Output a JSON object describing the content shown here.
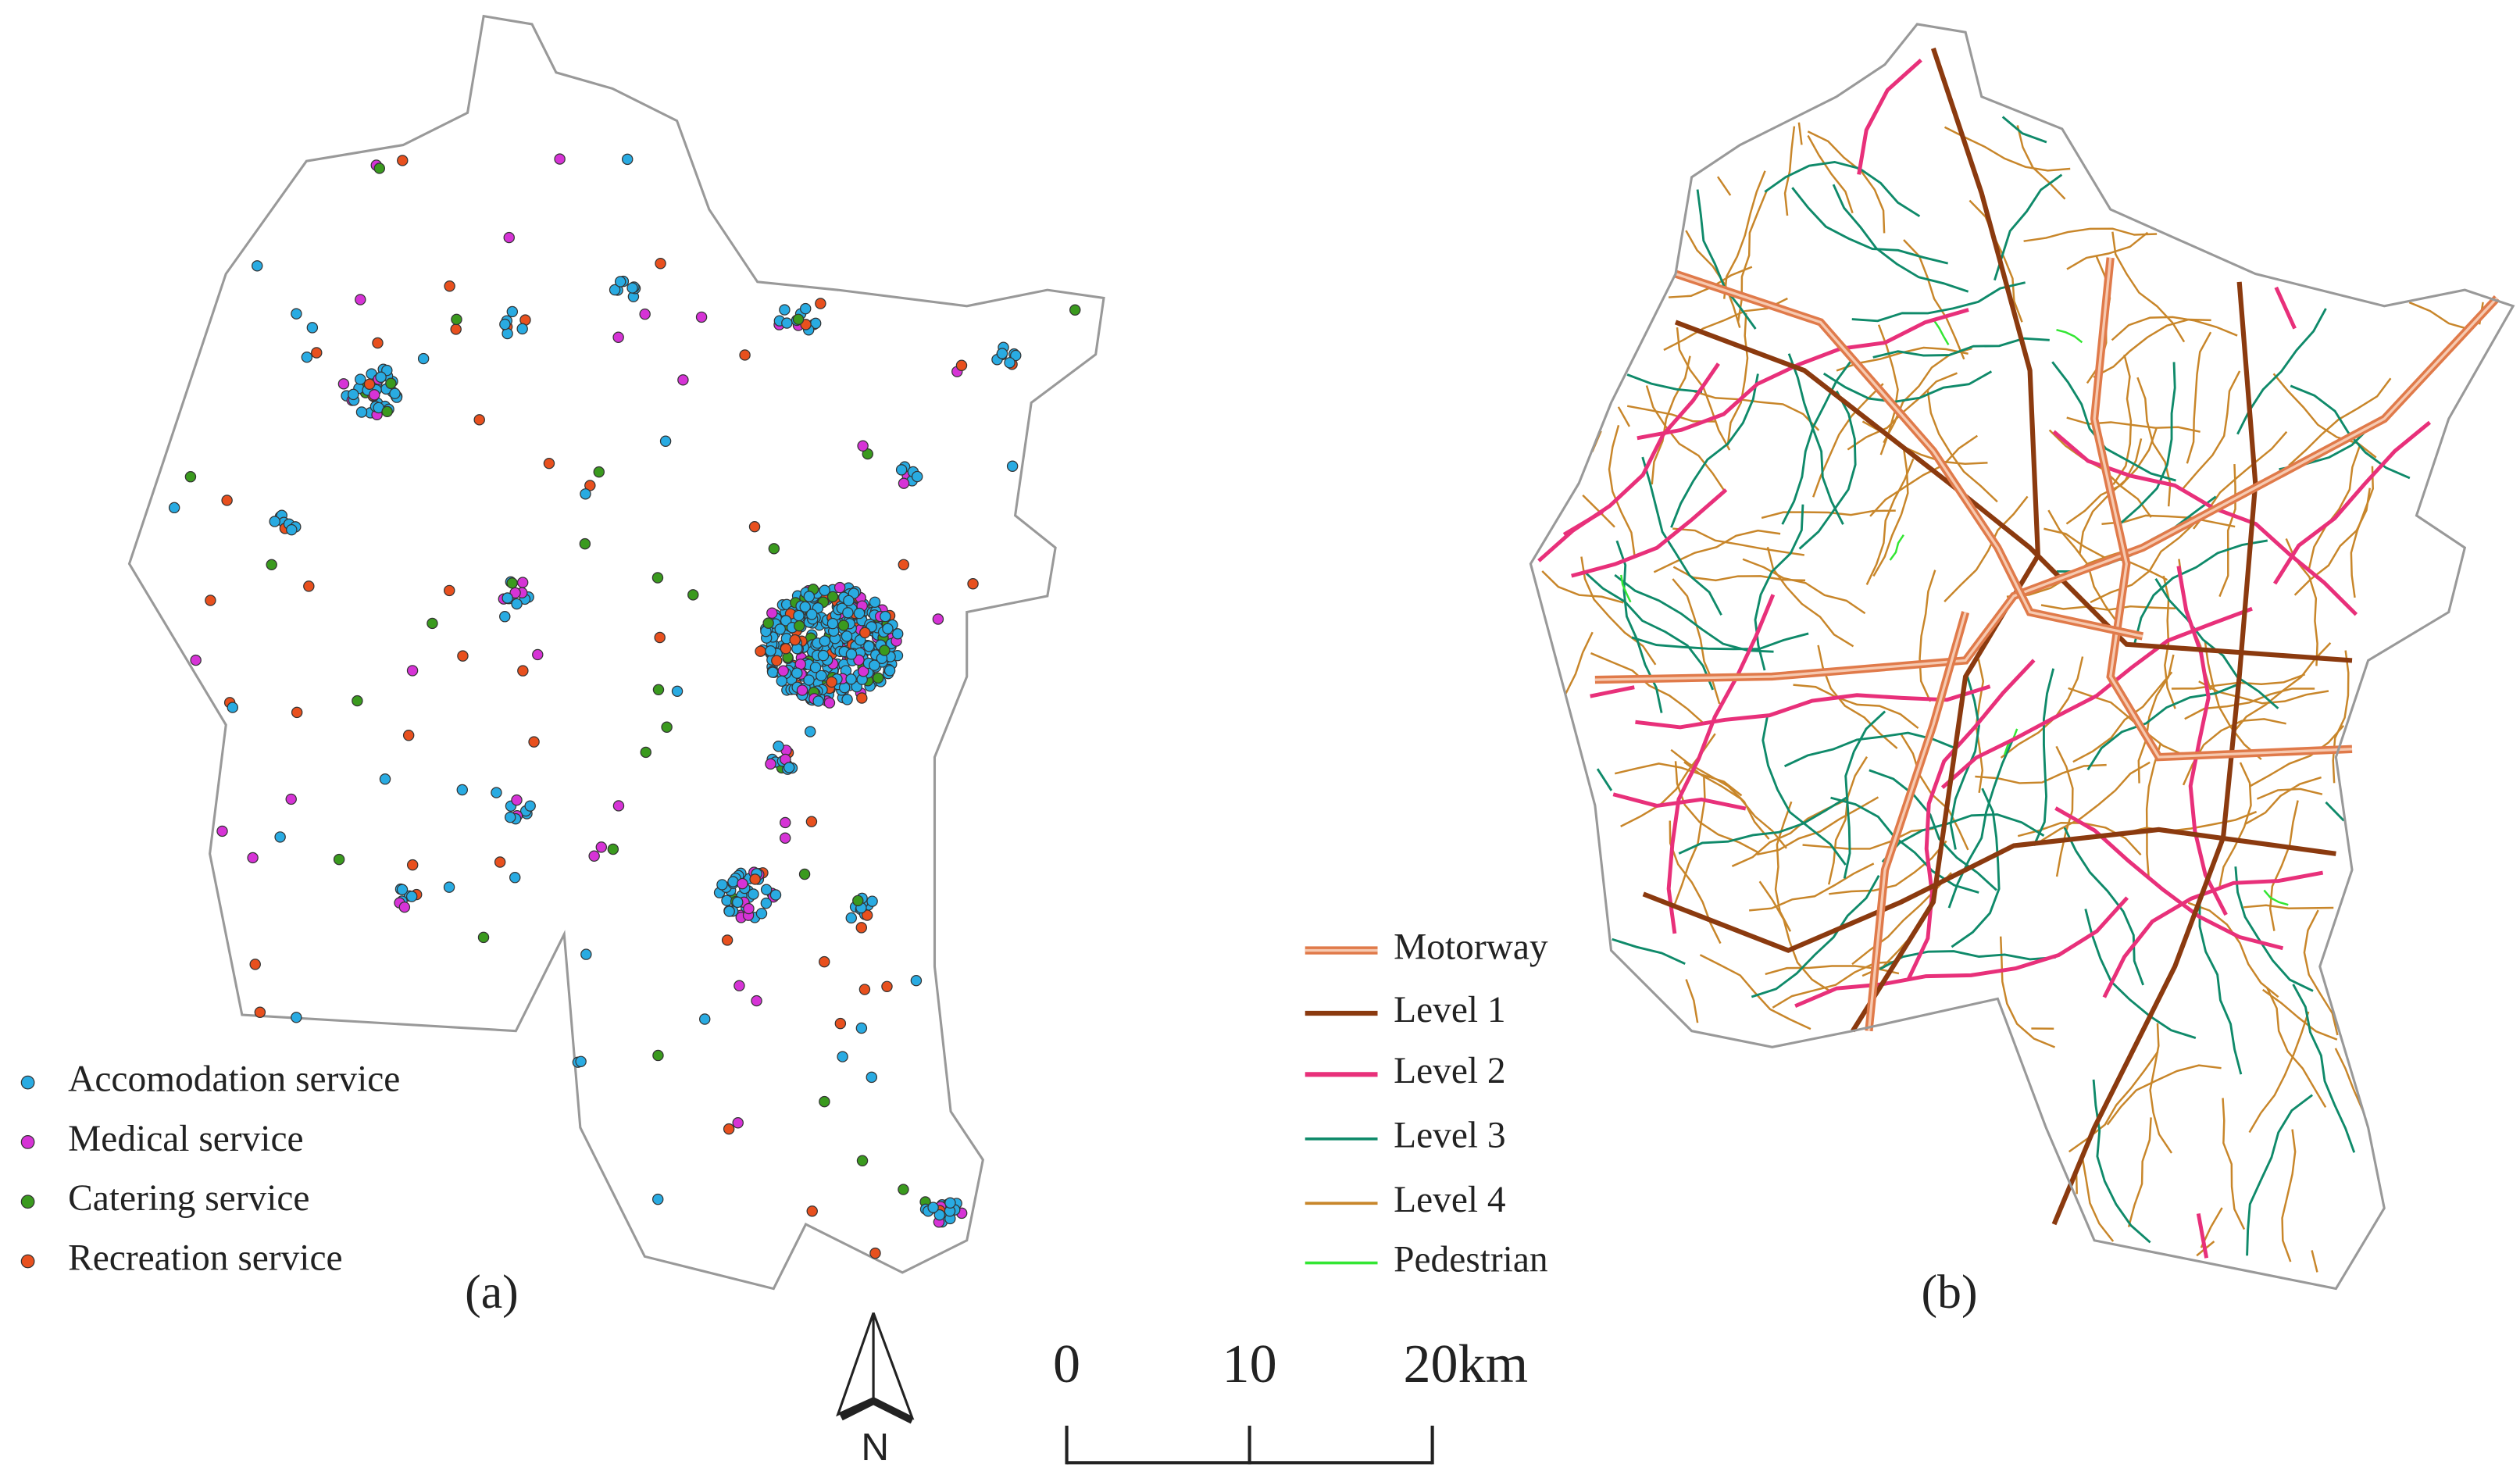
{
  "panel_a": {
    "label": "(a)",
    "legend": [
      {
        "name": "Accomodation service",
        "color": "#29abe2"
      },
      {
        "name": "Medical service",
        "color": "#d633d6"
      },
      {
        "name": "Catering service",
        "color": "#3a9a1e"
      },
      {
        "name": "Recreation service",
        "color": "#e8501e"
      }
    ]
  },
  "panel_b": {
    "label": "(b)",
    "legend": [
      {
        "name": "Motorway",
        "color": "#e07a4a"
      },
      {
        "name": "Level 1",
        "color": "#8b3a0f"
      },
      {
        "name": "Level 2",
        "color": "#e8307a"
      },
      {
        "name": "Level 3",
        "color": "#0f8a6a"
      },
      {
        "name": "Level 4",
        "color": "#c8862a"
      },
      {
        "name": "Pedestrian",
        "color": "#33e633"
      }
    ]
  },
  "north_arrow": {
    "label": "N"
  },
  "scale_bar": {
    "ticks": [
      {
        "value": 0,
        "label": "0"
      },
      {
        "value": 10,
        "label": "10"
      },
      {
        "value": 20,
        "label": "20km"
      }
    ]
  }
}
